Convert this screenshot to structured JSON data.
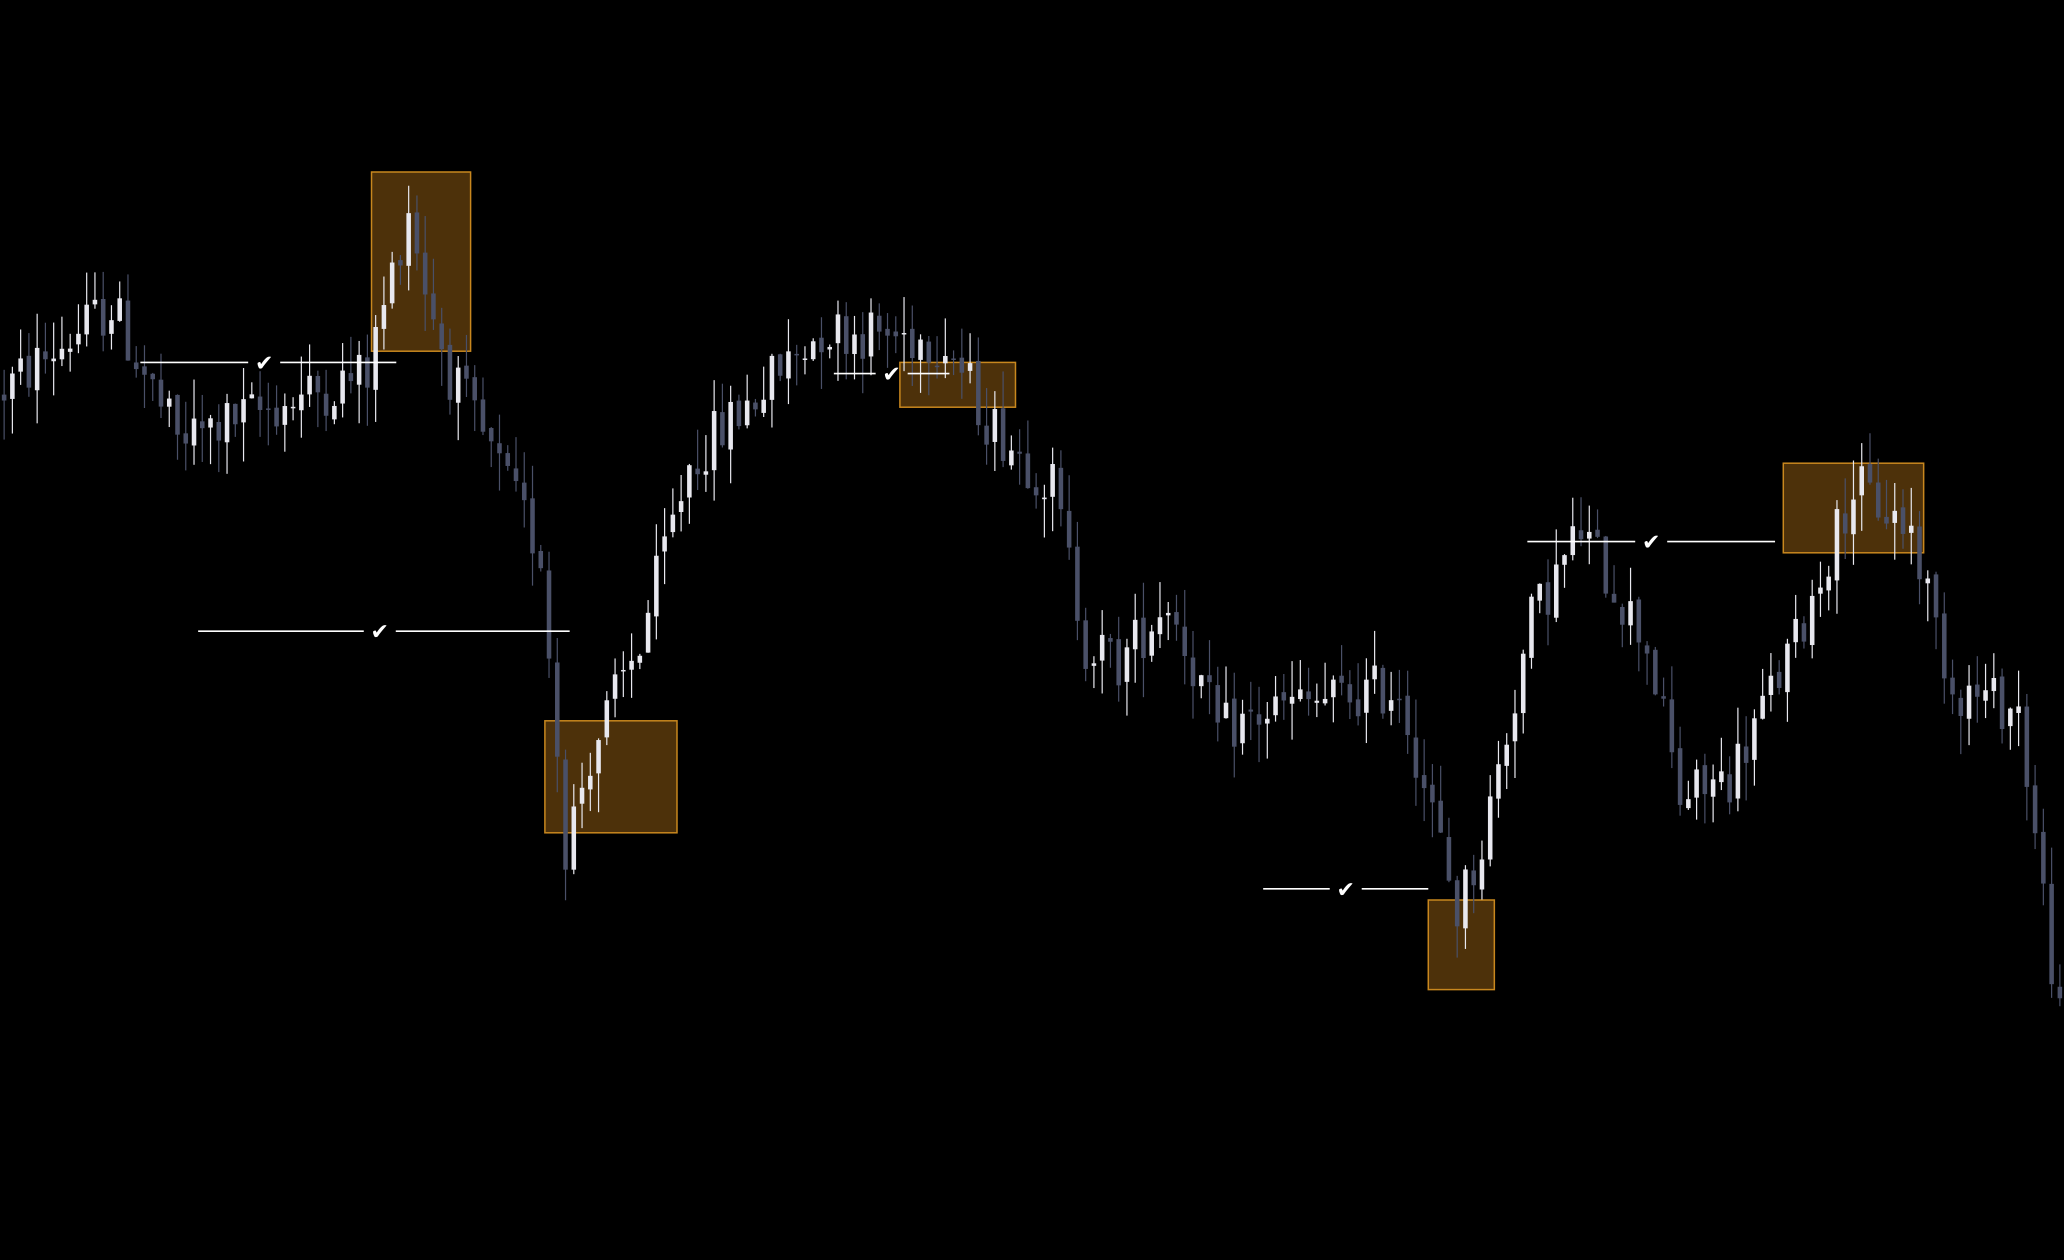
{
  "theme": {
    "background": "#000000",
    "bull_color": "#e8e8ef",
    "bear_color": "#4a5068",
    "zone_fill": "#5a3a0c",
    "zone_stroke": "#c8871e",
    "level_line_color": "#ffffff"
  },
  "chart_data": {
    "type": "candlestick",
    "title": "",
    "xlabel": "",
    "ylabel": "",
    "grid": false,
    "legend": "none",
    "ylim": [
      0,
      100
    ],
    "xlim": [
      0,
      250
    ],
    "pivots": [
      [
        0,
        70
      ],
      [
        14,
        78
      ],
      [
        22,
        66
      ],
      [
        45,
        72
      ],
      [
        50,
        87
      ],
      [
        52,
        80
      ],
      [
        55,
        72
      ],
      [
        66,
        56
      ],
      [
        69,
        30
      ],
      [
        72,
        38
      ],
      [
        78,
        48
      ],
      [
        84,
        64
      ],
      [
        100,
        76
      ],
      [
        115,
        75
      ],
      [
        120,
        68
      ],
      [
        128,
        62
      ],
      [
        132,
        48
      ],
      [
        136,
        46
      ],
      [
        142,
        52
      ],
      [
        148,
        40
      ],
      [
        155,
        42
      ],
      [
        170,
        44
      ],
      [
        177,
        24
      ],
      [
        180,
        30
      ],
      [
        186,
        50
      ],
      [
        192,
        58
      ],
      [
        200,
        48
      ],
      [
        204,
        34
      ],
      [
        210,
        36
      ],
      [
        218,
        48
      ],
      [
        225,
        62
      ],
      [
        232,
        58
      ],
      [
        237,
        44
      ],
      [
        245,
        42
      ],
      [
        250,
        14
      ]
    ],
    "supply_demand_zones": [
      {
        "kind": "supply",
        "x": [
          45,
          57
        ],
        "y": [
          74,
          90
        ]
      },
      {
        "kind": "demand",
        "x": [
          66,
          82
        ],
        "y": [
          31,
          41
        ]
      },
      {
        "kind": "supply",
        "x": [
          109,
          123
        ],
        "y": [
          69,
          73
        ]
      },
      {
        "kind": "demand",
        "x": [
          173,
          181
        ],
        "y": [
          17,
          25
        ]
      },
      {
        "kind": "supply",
        "x": [
          216,
          233
        ],
        "y": [
          56,
          64
        ]
      }
    ],
    "swept_levels": [
      {
        "x": [
          17,
          48
        ],
        "y": 73,
        "marker": "✔",
        "marker_x": 32
      },
      {
        "x": [
          24,
          69
        ],
        "y": 49,
        "marker": "✔",
        "marker_x": 46
      },
      {
        "x": [
          101,
          115
        ],
        "y": 72,
        "marker": "✔",
        "marker_x": 108
      },
      {
        "x": [
          153,
          173
        ],
        "y": 26,
        "marker": "✔",
        "marker_x": 163
      },
      {
        "x": [
          185,
          215
        ],
        "y": 57,
        "marker": "✔",
        "marker_x": 200
      }
    ]
  }
}
